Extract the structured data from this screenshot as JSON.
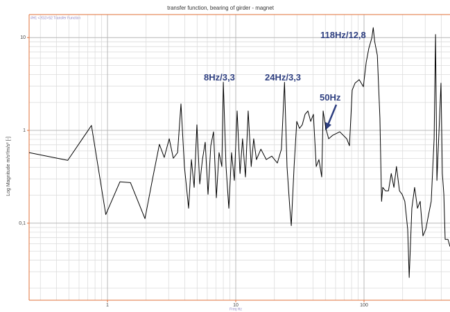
{
  "chart_data": {
    "type": "line",
    "title": "transfer function, bearing of girder - magnet",
    "subtitle": "#H1 <2G2>S2 Transfer Function",
    "xlabel": "Freq Hz",
    "ylabel": "Log Magnitude m/s²/m/s² [-]",
    "xscale": "log",
    "yscale": "log",
    "grid": true,
    "color": "#000000",
    "xlim": [
      0.245,
      468
    ],
    "ylim": [
      0.0148,
      17.7
    ],
    "xticks": [
      1,
      10,
      100
    ],
    "yticks": [
      {
        "value": 0.1,
        "label": "0,1"
      },
      1,
      10
    ],
    "annotations": [
      "8Hz/3,3",
      "24Hz/3,3",
      "50Hz",
      "118Hz/12,8"
    ],
    "x": [
      0.245,
      0.49,
      0.75,
      0.97,
      1.25,
      1.51,
      1.96,
      2.25,
      2.54,
      2.77,
      3.03,
      3.26,
      3.52,
      3.74,
      3.98,
      4.29,
      4.51,
      4.74,
      4.98,
      5.24,
      5.5,
      5.78,
      6.08,
      6.39,
      6.71,
      7.06,
      7.41,
      7.79,
      8.0,
      8.4,
      8.83,
      9.28,
      9.75,
      10.25,
      10.8,
      11.3,
      11.9,
      12.5,
      13.2,
      13.8,
      14.5,
      15.7,
      17.3,
      19.1,
      21.1,
      22.7,
      24,
      25.1,
      26.4,
      27.1,
      28.5,
      29.9,
      31.4,
      33.0,
      34.7,
      36.5,
      38.4,
      40.3,
      42.4,
      44.5,
      46.8,
      48.0,
      50.4,
      53.0,
      57.1,
      64.7,
      73.3,
      77.0,
      80.9,
      85.1,
      91.7,
      98.8,
      104,
      109,
      115,
      118,
      121,
      127,
      133,
      137,
      140,
      147,
      155,
      163,
      171,
      179,
      189,
      198,
      208,
      219,
      225,
      236,
      248,
      261,
      274,
      288,
      303,
      318,
      334,
      352,
      361,
      370,
      388,
      398,
      408,
      419,
      429,
      451,
      468
    ],
    "values": [
      0.576,
      0.476,
      1.13,
      0.124,
      0.279,
      0.274,
      0.112,
      0.304,
      0.708,
      0.511,
      0.813,
      0.501,
      0.576,
      1.93,
      0.408,
      0.145,
      0.485,
      0.243,
      1.15,
      0.265,
      0.485,
      0.746,
      0.205,
      0.684,
      0.966,
      0.188,
      0.576,
      0.408,
      3.3,
      0.408,
      0.145,
      0.576,
      0.289,
      1.62,
      0.343,
      0.813,
      0.315,
      1.62,
      0.408,
      0.813,
      0.485,
      0.628,
      0.485,
      0.528,
      0.445,
      0.628,
      3.3,
      0.408,
      0.145,
      0.094,
      0.408,
      1.25,
      1.05,
      1.15,
      1.49,
      1.62,
      1.25,
      1.49,
      0.408,
      0.485,
      0.315,
      1.62,
      1.05,
      0.813,
      0.887,
      0.966,
      0.813,
      0.684,
      2.72,
      3.23,
      3.52,
      2.96,
      5.42,
      7.65,
      9.91,
      12.8,
      9.1,
      6.44,
      1.36,
      0.172,
      0.243,
      0.223,
      0.223,
      0.343,
      0.243,
      0.408,
      0.223,
      0.205,
      0.172,
      0.086,
      0.026,
      0.145,
      0.243,
      0.145,
      0.172,
      0.073,
      0.086,
      0.122,
      0.172,
      0.813,
      10.8,
      0.289,
      1.36,
      3.23,
      0.343,
      0.205,
      0.067,
      0.067,
      0.056
    ]
  }
}
